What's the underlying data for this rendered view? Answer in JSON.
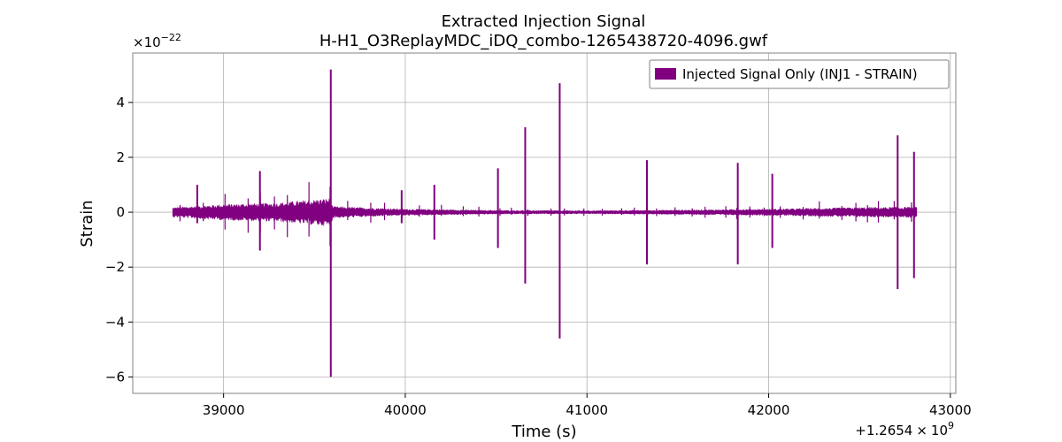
{
  "chart_data": {
    "type": "line",
    "title": "Extracted Injection Signal",
    "subtitle": "H-H1_O3ReplayMDC_iDQ_combo-1265438720-4096.gwf",
    "xlabel": "Time (s)",
    "ylabel": "Strain",
    "xlim": [
      38500,
      43030
    ],
    "ylim": [
      -6.6,
      5.8
    ],
    "x_offset_label": "+1.2654",
    "x_offset_base": "10",
    "x_offset_exp": "9",
    "y_scale_label": "×10",
    "y_scale_exp": "−22",
    "x_ticks": [
      {
        "value": 39000,
        "label": "39000"
      },
      {
        "value": 40000,
        "label": "40000"
      },
      {
        "value": 41000,
        "label": "41000"
      },
      {
        "value": 42000,
        "label": "42000"
      },
      {
        "value": 43000,
        "label": "43000"
      }
    ],
    "y_ticks": [
      {
        "value": 4,
        "label": "4"
      },
      {
        "value": 2,
        "label": "2"
      },
      {
        "value": 0,
        "label": "0"
      },
      {
        "value": -2,
        "label": "−2"
      },
      {
        "value": -4,
        "label": "−4"
      },
      {
        "value": -6,
        "label": "−6"
      }
    ],
    "grid": true,
    "legend_position": "top-right",
    "series": [
      {
        "name": "Injected Signal Only (INJ1 - STRAIN)",
        "color": "#800080",
        "x_range": [
          38720,
          42816
        ],
        "envelope": [
          {
            "x": 38720,
            "upper": 0.15,
            "lower": -0.15
          },
          {
            "x": 39000,
            "upper": 0.25,
            "lower": -0.25
          },
          {
            "x": 39300,
            "upper": 0.3,
            "lower": -0.3
          },
          {
            "x": 39590,
            "upper": 0.45,
            "lower": -0.45
          },
          {
            "x": 39600,
            "upper": 0.18,
            "lower": -0.18
          },
          {
            "x": 40000,
            "upper": 0.1,
            "lower": -0.1
          },
          {
            "x": 40500,
            "upper": 0.06,
            "lower": -0.06
          },
          {
            "x": 41000,
            "upper": 0.05,
            "lower": -0.05
          },
          {
            "x": 41500,
            "upper": 0.07,
            "lower": -0.07
          },
          {
            "x": 42000,
            "upper": 0.1,
            "lower": -0.1
          },
          {
            "x": 42500,
            "upper": 0.15,
            "lower": -0.15
          },
          {
            "x": 42816,
            "upper": 0.17,
            "lower": -0.17
          }
        ],
        "spikes": [
          {
            "x": 38855,
            "high": 1.0,
            "low": -0.4
          },
          {
            "x": 39200,
            "high": 1.5,
            "low": -1.4
          },
          {
            "x": 39590,
            "high": 5.2,
            "low": -6.0
          },
          {
            "x": 39980,
            "high": 0.8,
            "low": -0.4
          },
          {
            "x": 40160,
            "high": 1.0,
            "low": -1.0
          },
          {
            "x": 40510,
            "high": 1.6,
            "low": -1.3
          },
          {
            "x": 40660,
            "high": 3.1,
            "low": -2.6
          },
          {
            "x": 40850,
            "high": 4.7,
            "low": -4.6
          },
          {
            "x": 41330,
            "high": 1.9,
            "low": -1.9
          },
          {
            "x": 41830,
            "high": 1.8,
            "low": -1.9
          },
          {
            "x": 42020,
            "high": 1.4,
            "low": -1.3
          },
          {
            "x": 42710,
            "high": 2.8,
            "low": -2.8
          },
          {
            "x": 42800,
            "high": 2.2,
            "low": -2.4
          }
        ]
      }
    ]
  }
}
